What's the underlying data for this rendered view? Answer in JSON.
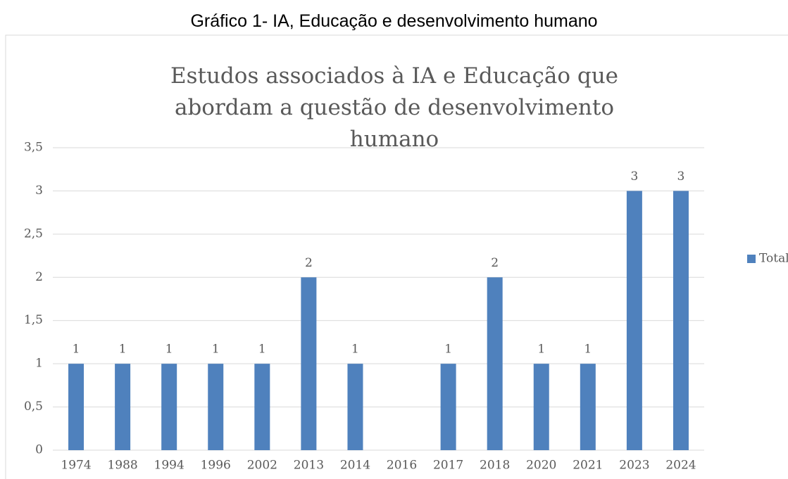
{
  "heading": "Gráfico 1- IA, Educação e desenvolvimento humano",
  "chart_data": {
    "type": "bar",
    "title": "Estudos associados à IA e Educação que abordam a questão de desenvolvimento humano",
    "categories": [
      "1974",
      "1988",
      "1994",
      "1996",
      "2002",
      "2013",
      "2014",
      "2016",
      "2017",
      "2018",
      "2020",
      "2021",
      "2023",
      "2024"
    ],
    "series": [
      {
        "name": "Total",
        "color": "#4f81bd",
        "values": [
          1,
          1,
          1,
          1,
          1,
          2,
          1,
          null,
          1,
          2,
          1,
          1,
          3,
          3
        ]
      }
    ],
    "ylim": [
      0,
      3.5
    ],
    "yticks": [
      0,
      {
        "value": 0.5,
        "label": "0,5"
      },
      1,
      {
        "value": 1.5,
        "label": "1,5"
      },
      2,
      {
        "value": 2.5,
        "label": "2,5"
      },
      3,
      {
        "value": 3.5,
        "label": "3,5"
      }
    ],
    "grid": true,
    "legend": "right"
  }
}
